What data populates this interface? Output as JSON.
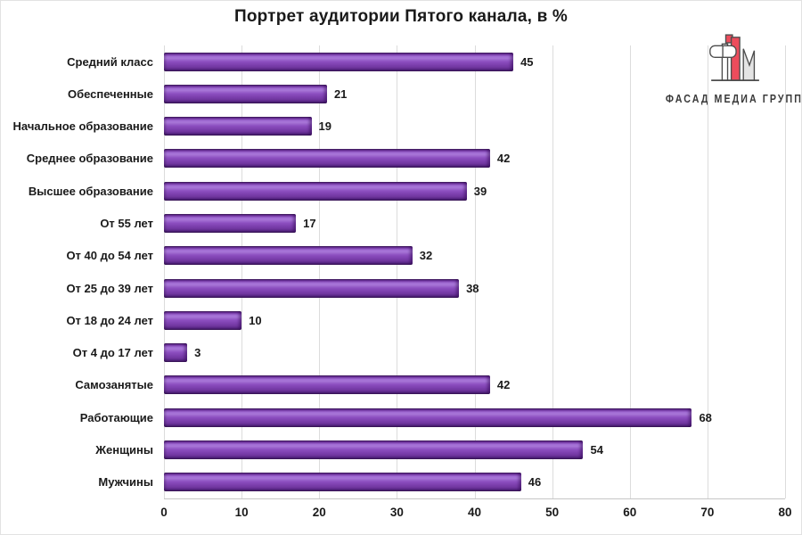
{
  "page": {
    "background": "#ffffff",
    "border_color": "#e2e2e2",
    "gridline_color": "#dcdcdc",
    "axis_line_color": "#c6c6c6"
  },
  "chart_data": {
    "type": "bar",
    "orientation": "horizontal",
    "title": "Портрет аудитории Пятого канала, в %",
    "categories": [
      "Средний класс",
      "Обеспеченные",
      "Начальное образование",
      "Среднее образование",
      "Высшее образование",
      "От 55 лет",
      "От 40 до 54 лет",
      "От 25 до 39 лет",
      "От 18 до 24 лет",
      "От 4 до 17 лет",
      "Самозанятые",
      "Работающие",
      "Женщины",
      "Мужчины"
    ],
    "values": [
      45,
      21,
      19,
      42,
      39,
      17,
      32,
      38,
      10,
      3,
      42,
      68,
      54,
      46
    ],
    "xlabel": "",
    "ylabel": "",
    "xlim": [
      0,
      80
    ],
    "xticks": [
      0,
      10,
      20,
      30,
      40,
      50,
      60,
      70,
      80
    ],
    "grid": "vertical",
    "legend": "none",
    "data_labels": true,
    "bar_color": "#7d40af",
    "bar_highlight_color": "#a877d8",
    "bar_shadow_color": "#3f1d5c"
  },
  "logo": {
    "text": "ФАСАД МЕДИА ГРУПП",
    "icon": "fasad-media-group-monogram",
    "accent_color": "#ed4c5c",
    "outline_color": "#4d4d4d",
    "text_color": "#3a3a3a"
  }
}
